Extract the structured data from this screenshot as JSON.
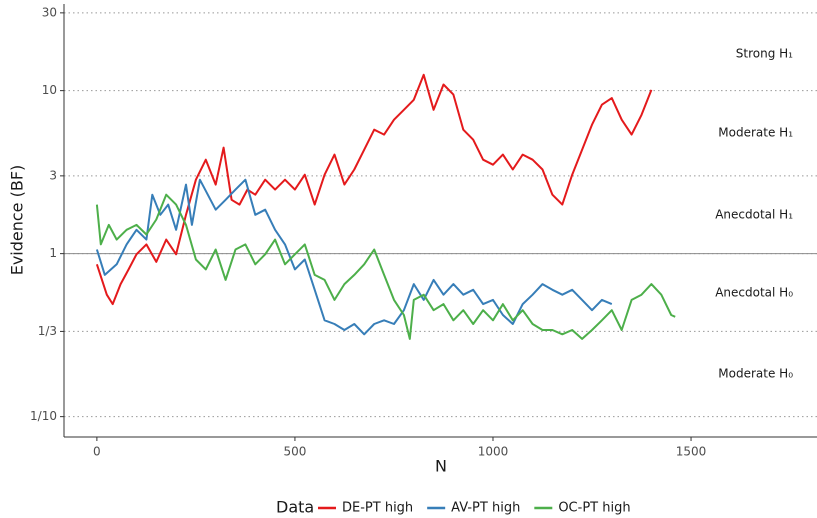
{
  "chart_data": {
    "type": "line",
    "x_label": "N",
    "y_label": "Evidence (BF)",
    "log_y": true,
    "grid": true,
    "xlim": [
      -83,
      1818
    ],
    "xticks": [
      0,
      500,
      1000,
      1500
    ],
    "ylim": [
      0.075,
      34
    ],
    "yticks": [
      {
        "value": 0.1,
        "label": "1/10"
      },
      {
        "value": 0.3333,
        "label": "1/3"
      },
      1,
      3,
      10,
      30
    ],
    "hline": 1,
    "annotations": [
      "Strong H₁",
      "Moderate H₁",
      "Anecdotal H₁",
      "Anecdotal H₀",
      "Moderate H₀"
    ],
    "legend_title": "Data",
    "legend_position": "bottom",
    "series": [
      {
        "name": "DE-PT high",
        "color": "#e41a1c",
        "x": [
          0,
          25,
          40,
          60,
          80,
          100,
          125,
          150,
          175,
          200,
          225,
          250,
          275,
          300,
          320,
          340,
          360,
          380,
          400,
          425,
          450,
          475,
          500,
          525,
          550,
          575,
          600,
          625,
          650,
          675,
          700,
          725,
          750,
          775,
          800,
          825,
          850,
          875,
          900,
          925,
          950,
          975,
          1000,
          1025,
          1050,
          1075,
          1100,
          1125,
          1150,
          1175,
          1200,
          1225,
          1250,
          1275,
          1300,
          1325,
          1350,
          1375,
          1400
        ],
        "values": [
          0.86,
          0.56,
          0.49,
          0.65,
          0.8,
          0.99,
          1.14,
          0.89,
          1.22,
          0.99,
          1.73,
          2.84,
          3.77,
          2.65,
          4.47,
          2.14,
          2.0,
          2.47,
          2.3,
          2.84,
          2.47,
          2.84,
          2.47,
          3.05,
          2.0,
          3.05,
          4.05,
          2.65,
          3.28,
          4.34,
          5.76,
          5.37,
          6.63,
          7.63,
          8.79,
          12.5,
          7.63,
          10.9,
          9.45,
          5.76,
          5.0,
          3.77,
          3.51,
          4.05,
          3.28,
          4.05,
          3.77,
          3.28,
          2.3,
          2.0,
          3.05,
          4.34,
          6.18,
          8.2,
          9.0,
          6.63,
          5.37,
          7.1,
          10.1
        ]
      },
      {
        "name": "AV-PT high",
        "color": "#377eb8",
        "x": [
          0,
          20,
          50,
          75,
          100,
          125,
          140,
          160,
          180,
          200,
          225,
          240,
          260,
          280,
          300,
          325,
          350,
          375,
          400,
          425,
          450,
          475,
          500,
          525,
          550,
          575,
          600,
          625,
          650,
          675,
          700,
          725,
          750,
          775,
          800,
          825,
          850,
          875,
          900,
          925,
          950,
          975,
          1000,
          1025,
          1050,
          1075,
          1100,
          1125,
          1150,
          1175,
          1200,
          1225,
          1250,
          1275,
          1300
        ],
        "values": [
          1.06,
          0.74,
          0.86,
          1.14,
          1.4,
          1.22,
          2.3,
          1.73,
          2.0,
          1.4,
          2.65,
          1.5,
          2.84,
          2.3,
          1.86,
          2.14,
          2.47,
          2.84,
          1.73,
          1.86,
          1.4,
          1.14,
          0.8,
          0.92,
          0.6,
          0.39,
          0.37,
          0.34,
          0.37,
          0.32,
          0.37,
          0.39,
          0.37,
          0.45,
          0.65,
          0.52,
          0.69,
          0.56,
          0.65,
          0.56,
          0.6,
          0.49,
          0.52,
          0.42,
          0.37,
          0.49,
          0.56,
          0.65,
          0.6,
          0.56,
          0.6,
          0.52,
          0.45,
          0.52,
          0.49
        ]
      },
      {
        "name": "OC-PT high",
        "color": "#4daf4a",
        "x": [
          0,
          10,
          30,
          50,
          75,
          100,
          125,
          150,
          175,
          200,
          225,
          250,
          275,
          300,
          325,
          350,
          375,
          400,
          425,
          450,
          475,
          500,
          525,
          550,
          575,
          600,
          625,
          650,
          675,
          700,
          725,
          750,
          775,
          790,
          800,
          825,
          850,
          875,
          900,
          925,
          950,
          975,
          1000,
          1025,
          1050,
          1075,
          1100,
          1125,
          1150,
          1175,
          1200,
          1225,
          1250,
          1275,
          1300,
          1325,
          1350,
          1375,
          1400,
          1425,
          1450,
          1460
        ],
        "values": [
          2.0,
          1.14,
          1.5,
          1.22,
          1.4,
          1.5,
          1.31,
          1.62,
          2.3,
          2.0,
          1.5,
          0.92,
          0.8,
          1.06,
          0.69,
          1.06,
          1.14,
          0.86,
          0.99,
          1.22,
          0.86,
          0.99,
          1.14,
          0.74,
          0.69,
          0.52,
          0.65,
          0.74,
          0.86,
          1.06,
          0.74,
          0.52,
          0.42,
          0.3,
          0.52,
          0.56,
          0.45,
          0.49,
          0.39,
          0.45,
          0.37,
          0.45,
          0.39,
          0.49,
          0.39,
          0.45,
          0.37,
          0.34,
          0.34,
          0.32,
          0.34,
          0.3,
          0.34,
          0.39,
          0.45,
          0.34,
          0.52,
          0.56,
          0.65,
          0.56,
          0.42,
          0.41
        ]
      }
    ]
  }
}
